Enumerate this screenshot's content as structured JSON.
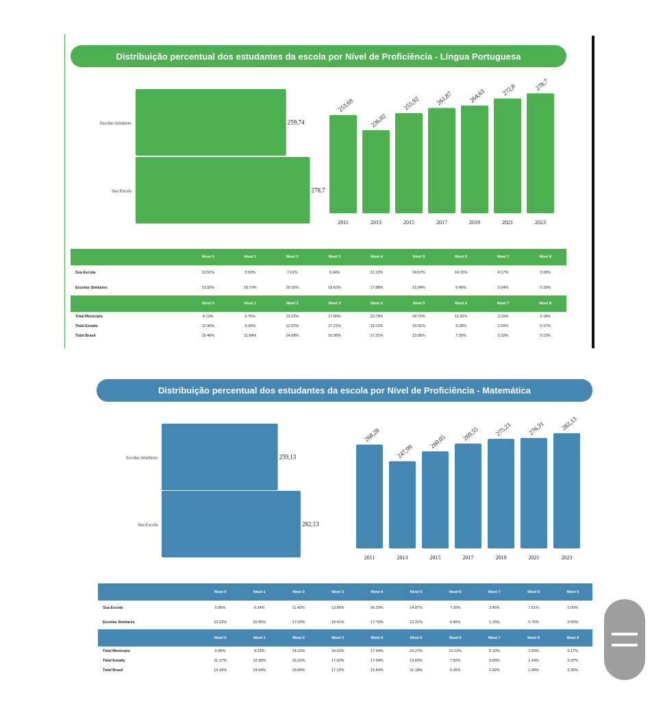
{
  "chart_data": [
    {
      "type": "bar",
      "title": "Distribuição percentual dos estudantes da escola por Nível de Proficiência - Língua Portuguesa",
      "color": "#4caf50",
      "comparison": {
        "categories": [
          "Escolas Similares",
          "Sua Escola"
        ],
        "values": [
          259.74,
          278.7
        ],
        "labels": [
          "259,74",
          "278,7"
        ]
      },
      "trend": {
        "categories": [
          "2011",
          "2013",
          "2015",
          "2017",
          "2019",
          "2021",
          "2023"
        ],
        "values": [
          253.69,
          236.02,
          255.92,
          261.87,
          264.63,
          272.8,
          278.7
        ],
        "labels": [
          "253,69",
          "236,02",
          "255,92",
          "261,87",
          "264,63",
          "272,8",
          "278,7"
        ]
      },
      "levels": [
        "Nível 0",
        "Nível 1",
        "Nível 2",
        "Nível 3",
        "Nível 4",
        "Nível 5",
        "Nível 6",
        "Nível 7",
        "Nível 8"
      ],
      "school_rows": [
        {
          "label": "Sua Escola",
          "values": [
            "13.51%",
            "5.53%",
            "7.61%",
            "9.34%",
            "21.12%",
            "24.57%",
            "14.15%",
            "4.17%",
            "0.00%"
          ]
        },
        {
          "label": "Escolas Similares",
          "values": [
            "13.92%",
            "10.73%",
            "16.15%",
            "19.62%",
            "17.98%",
            "12.94%",
            "6.45%",
            "2.04%",
            "0.18%"
          ]
        }
      ],
      "total_rows": [
        {
          "label": "Total Município",
          "values": [
            "8.13%",
            "6.75%",
            "13.22%",
            "17.80%",
            "20.79%",
            "18.72%",
            "11.25%",
            "3.15%",
            "0.18%"
          ]
        },
        {
          "label": "Total Estado",
          "values": [
            "12.40%",
            "9.39%",
            "12.97%",
            "17.21%",
            "19.12%",
            "16.91%",
            "9.28%",
            "2.55%",
            "0.17%"
          ]
        },
        {
          "label": "Total Brasil",
          "values": [
            "15.46%",
            "11.84%",
            "14.68%",
            "16.95%",
            "17.31%",
            "13.95%",
            "7.35%",
            "2.32%",
            "0.13%"
          ]
        }
      ]
    },
    {
      "type": "bar",
      "title": "Distribuição percentual dos estudantes da escola por Nível de Proficiência - Matemática",
      "color": "#4387b2",
      "comparison": {
        "categories": [
          "Escolas Similares",
          "Sua Escola"
        ],
        "values": [
          259.13,
          282.13
        ],
        "labels": [
          "259,13",
          "282,13"
        ]
      },
      "trend": {
        "categories": [
          "2011",
          "2013",
          "2015",
          "2017",
          "2019",
          "2021",
          "2023"
        ],
        "values": [
          268.28,
          247.99,
          260.05,
          269.55,
          275.21,
          276.31,
          282.13
        ],
        "labels": [
          "268,28",
          "247,99",
          "260,05",
          "269,55",
          "275,21",
          "276,31",
          "282,13"
        ]
      },
      "levels": [
        "Nível 0",
        "Nível 1",
        "Nível 2",
        "Nível 3",
        "Nível 4",
        "Nível 5",
        "Nível 6",
        "Nível 7",
        "Nível 8",
        "Nível 9"
      ],
      "school_rows": [
        {
          "label": "Sua Escola",
          "values": [
            "5.89%",
            "9.34%",
            "11.42%",
            "13.86%",
            "26.29%",
            "14.87%",
            "7.26%",
            "3.45%",
            "7.61%",
            "0.00%"
          ]
        },
        {
          "label": "Escolas Similares",
          "values": [
            "10.12%",
            "15.05%",
            "17.00%",
            "19.41%",
            "17.76%",
            "12.31%",
            "6.45%",
            "1.15%",
            "0.75%",
            "0.00%"
          ]
        }
      ],
      "total_rows": [
        {
          "label": "Total Município",
          "values": [
            "6.98%",
            "9.23%",
            "14.15%",
            "19.53%",
            "17.64%",
            "15.27%",
            "10.12%",
            "5.10%",
            "1.83%",
            "0.17%"
          ]
        },
        {
          "label": "Total Estado",
          "values": [
            "11.17%",
            "12.36%",
            "15.32%",
            "17.02%",
            "17.58%",
            "13.60%",
            "7.52%",
            "3.89%",
            "1.14%",
            "0.37%"
          ]
        },
        {
          "label": "Total Brasil",
          "values": [
            "14.35%",
            "14.54%",
            "16.84%",
            "17.13%",
            "15.44%",
            "11.18%",
            "6.26%",
            "2.92%",
            "1.00%",
            "0.35%"
          ]
        }
      ]
    }
  ],
  "menu_button": {
    "icon": "menu-icon"
  }
}
